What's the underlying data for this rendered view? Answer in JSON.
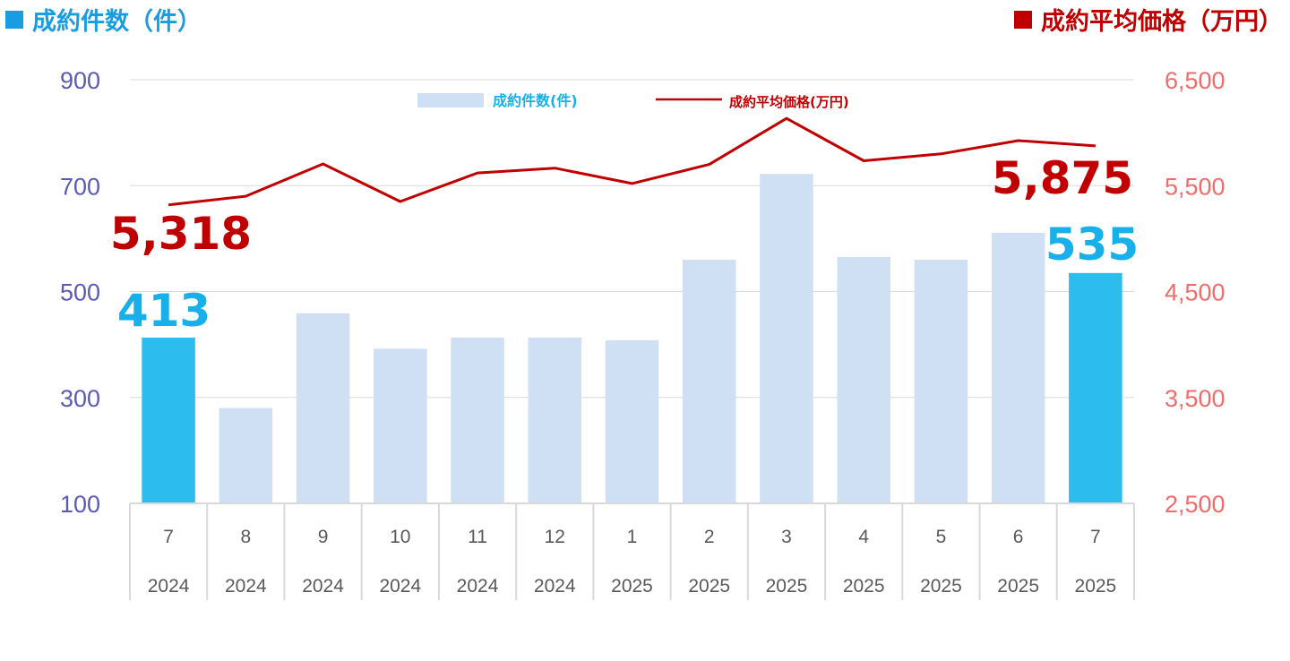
{
  "titles": {
    "left": "成約件数（件）",
    "right": "成約平均価格（万円）",
    "left_color": "#1a9de0",
    "right_color": "#c00000"
  },
  "legend": {
    "bar_label": "成約件数(件)",
    "line_label": "成約平均価格(万円)"
  },
  "highlights": {
    "first_count": "413",
    "last_count": "535",
    "first_price": "5,318",
    "last_price": "5,875"
  },
  "colors": {
    "bar": "#cfdff4",
    "bar_highlight": "#2cbcee",
    "line": "#c00000",
    "left_axis": "#5b5bb5",
    "right_axis": "#f26b6b",
    "grid": "#d9d9d9",
    "count_label": "#18b0ea",
    "price_label": "#c00000"
  },
  "chart_data": {
    "type": "bar",
    "categories": [
      "7",
      "8",
      "9",
      "10",
      "11",
      "12",
      "1",
      "2",
      "3",
      "4",
      "5",
      "6",
      "7"
    ],
    "years": [
      "2024",
      "2024",
      "2024",
      "2024",
      "2024",
      "2024",
      "2025",
      "2025",
      "2025",
      "2025",
      "2025",
      "2025",
      "2025"
    ],
    "series": [
      {
        "name": "成約件数(件)",
        "type": "bar",
        "axis": "left",
        "values": [
          413,
          280,
          459,
          392,
          413,
          413,
          408,
          560,
          722,
          565,
          560,
          611,
          535
        ],
        "highlight": [
          true,
          false,
          false,
          false,
          false,
          false,
          false,
          false,
          false,
          false,
          false,
          false,
          true
        ]
      },
      {
        "name": "成約平均価格(万円)",
        "type": "line",
        "axis": "right",
        "values": [
          5318,
          5400,
          5705,
          5350,
          5620,
          5665,
          5520,
          5700,
          6135,
          5735,
          5800,
          5925,
          5875
        ]
      }
    ],
    "y_left": {
      "ticks": [
        "900",
        "700",
        "500",
        "300",
        "100"
      ],
      "ylim": [
        100,
        900
      ]
    },
    "y_right": {
      "ticks": [
        "6,500",
        "5,500",
        "4,500",
        "3,500",
        "2,500"
      ],
      "ylim": [
        2500,
        6500
      ]
    },
    "grid": true,
    "legend_position": "top-center"
  }
}
